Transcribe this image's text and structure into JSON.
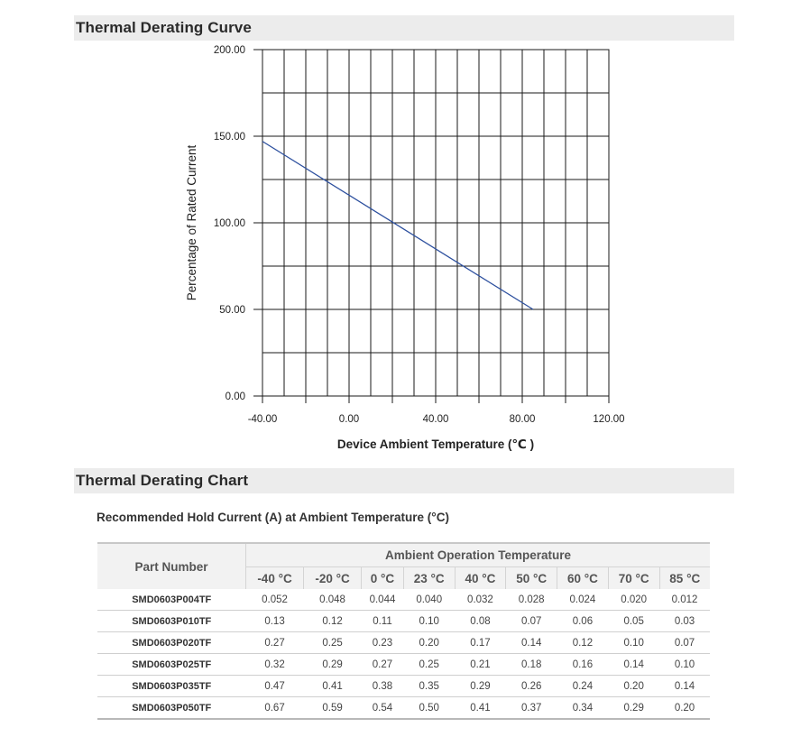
{
  "sections": {
    "curve_title": "Thermal Derating Curve",
    "chart_title": "Thermal Derating Chart"
  },
  "chart_data": {
    "type": "line",
    "title": "",
    "xlabel": "Device Ambient Temperature (℃ )",
    "ylabel": "Percentage of Rated Current",
    "xlim": [
      -40,
      120
    ],
    "ylim": [
      0,
      200
    ],
    "x_tick_labels": [
      "-40.00",
      "0.00",
      "40.00",
      "80.00",
      "120.00"
    ],
    "y_tick_labels": [
      "0.00",
      "50.00",
      "100.00",
      "150.00",
      "200.00"
    ],
    "grid": true,
    "series": [
      {
        "color": "#2c4f9e",
        "x": [
          -40,
          85
        ],
        "y": [
          147,
          50
        ]
      }
    ]
  },
  "table": {
    "caption": "Recommended Hold Current (A) at Ambient Temperature (°C)",
    "part_header": "Part Number",
    "group_header": "Ambient Operation Temperature",
    "columns": [
      "-40 °C",
      "-20 °C",
      "0 °C",
      "23 °C",
      "40 °C",
      "50 °C",
      "60 °C",
      "70 °C",
      "85 °C"
    ],
    "rows": [
      {
        "part": "SMD0603P004TF",
        "values": [
          "0.052",
          "0.048",
          "0.044",
          "0.040",
          "0.032",
          "0.028",
          "0.024",
          "0.020",
          "0.012"
        ]
      },
      {
        "part": "SMD0603P010TF",
        "values": [
          "0.13",
          "0.12",
          "0.11",
          "0.10",
          "0.08",
          "0.07",
          "0.06",
          "0.05",
          "0.03"
        ]
      },
      {
        "part": "SMD0603P020TF",
        "values": [
          "0.27",
          "0.25",
          "0.23",
          "0.20",
          "0.17",
          "0.14",
          "0.12",
          "0.10",
          "0.07"
        ]
      },
      {
        "part": "SMD0603P025TF",
        "values": [
          "0.32",
          "0.29",
          "0.27",
          "0.25",
          "0.21",
          "0.18",
          "0.16",
          "0.14",
          "0.10"
        ]
      },
      {
        "part": "SMD0603P035TF",
        "values": [
          "0.47",
          "0.41",
          "0.38",
          "0.35",
          "0.29",
          "0.26",
          "0.24",
          "0.20",
          "0.14"
        ]
      },
      {
        "part": "SMD0603P050TF",
        "values": [
          "0.67",
          "0.59",
          "0.54",
          "0.50",
          "0.41",
          "0.37",
          "0.34",
          "0.29",
          "0.20"
        ]
      }
    ]
  }
}
